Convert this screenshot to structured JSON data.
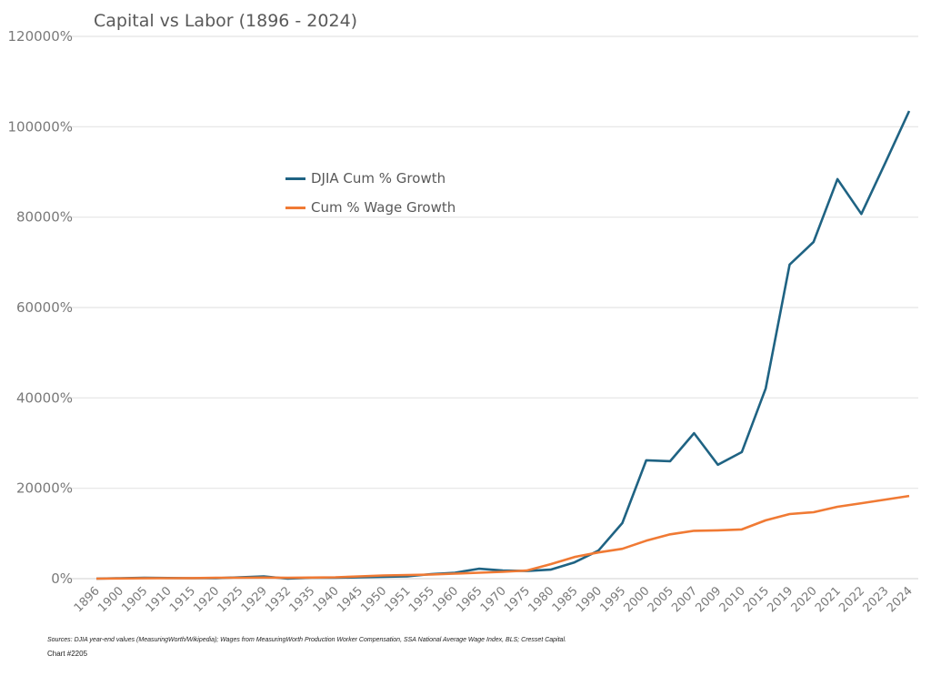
{
  "chart_data": {
    "type": "line",
    "title": "Capital vs Labor (1896 - 2024)",
    "xlabel": "",
    "ylabel": "",
    "categories": [
      "1896",
      "1900",
      "1905",
      "1910",
      "1915",
      "1920",
      "1925",
      "1929",
      "1932",
      "1935",
      "1940",
      "1945",
      "1950",
      "1951",
      "1955",
      "1960",
      "1965",
      "1970",
      "1975",
      "1980",
      "1985",
      "1990",
      "1995",
      "2000",
      "2005",
      "2007",
      "2009",
      "2010",
      "2015",
      "2019",
      "2020",
      "2021",
      "2022",
      "2023",
      "2024"
    ],
    "ylim": [
      0,
      120000
    ],
    "yticks": [
      "0%",
      "20000%",
      "40000%",
      "60000%",
      "80000%",
      "100000%",
      "120000%"
    ],
    "grid": true,
    "legend_position": "upper-left-center",
    "series": [
      {
        "name": "DJIA Cum % Growth",
        "color": "#1f6383",
        "values": [
          0,
          100,
          200,
          150,
          100,
          100,
          300,
          500,
          0,
          200,
          200,
          300,
          400,
          500,
          1000,
          1300,
          2200,
          1800,
          1700,
          2000,
          3600,
          6200,
          12300,
          26200,
          26000,
          32200,
          25200,
          28000,
          42100,
          69500,
          74500,
          88400,
          80700,
          92000,
          103500
        ]
      },
      {
        "name": "Cum % Wage Growth",
        "color": "#f07a34",
        "values": [
          0,
          50,
          80,
          100,
          120,
          200,
          200,
          250,
          200,
          250,
          300,
          500,
          700,
          800,
          900,
          1100,
          1300,
          1500,
          1800,
          3200,
          4800,
          5800,
          6600,
          8400,
          9800,
          10600,
          10700,
          10900,
          12900,
          14300,
          14700,
          15900,
          16700,
          17500,
          18300
        ]
      }
    ]
  },
  "footer": {
    "sources": "Sources: DJIA year-end values (MeasuringWorth/Wikipedia); Wages from MeasuringWorth Production Worker Compensation, SSA National Average Wage Index, BLS; Cresset Capital.",
    "chart_number": "Chart #2205"
  }
}
